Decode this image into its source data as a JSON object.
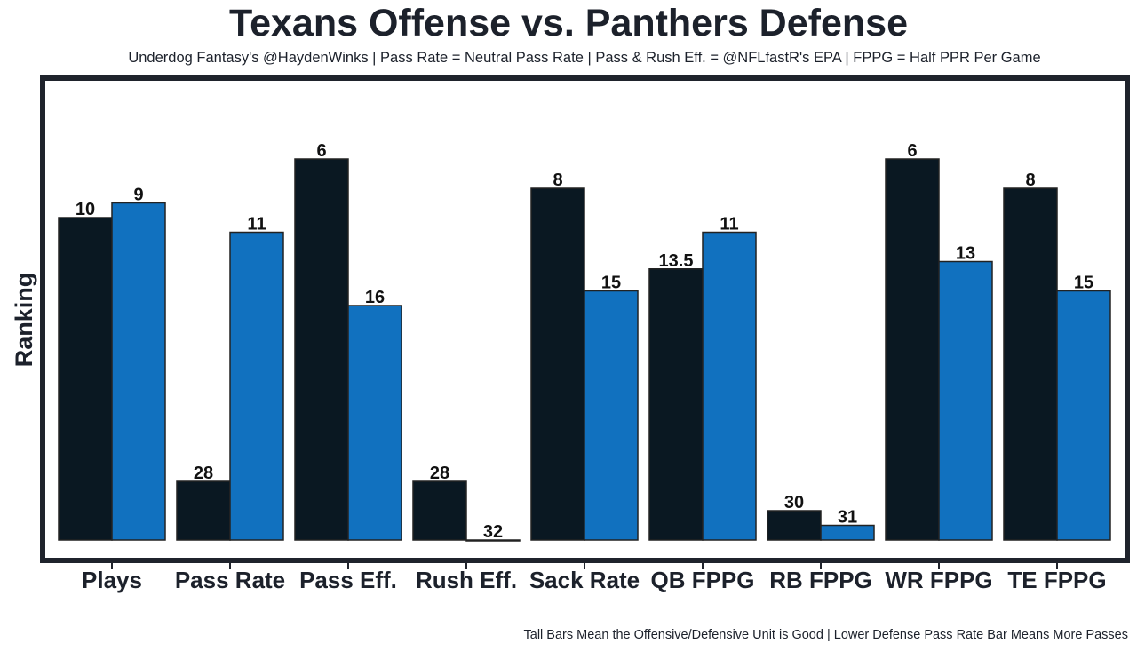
{
  "chart_data": {
    "type": "bar",
    "title": "Texans Offense vs. Panthers Defense",
    "subtitle": "Underdog Fantasy's @HaydenWinks | Pass Rate = Neutral Pass Rate | Pass & Rush Eff. = @NFLfastR's EPA | FPPG = Half PPR Per Game",
    "footer": "Tall Bars Mean the Offensive/Defensive Unit is Good | Lower Defense Pass Rate Bar Means More Passes",
    "xlabel": "",
    "ylabel": "Ranking",
    "ylim": [
      32,
      1
    ],
    "grid": false,
    "legend": "none",
    "categories": [
      "Plays",
      "Pass Rate",
      "Pass Eff.",
      "Rush Eff.",
      "Sack Rate",
      "QB FPPG",
      "RB FPPG",
      "WR FPPG",
      "TE FPPG"
    ],
    "series": [
      {
        "name": "Texans Offense",
        "color": "#0a1822",
        "values": [
          10,
          28,
          6,
          28,
          8,
          13.5,
          30,
          6,
          8
        ]
      },
      {
        "name": "Panthers Defense",
        "color": "#1171bf",
        "values": [
          9,
          11,
          16,
          32,
          15,
          11,
          31,
          13,
          15
        ]
      }
    ]
  }
}
